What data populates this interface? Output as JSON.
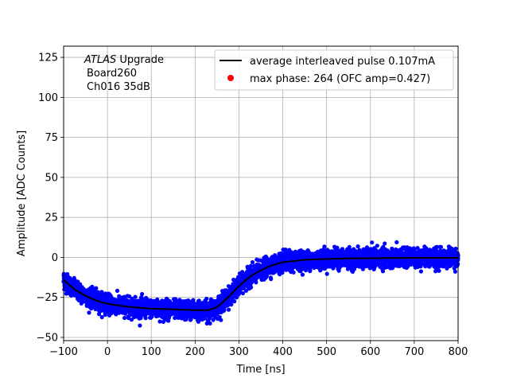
{
  "chart_data": {
    "type": "scatter",
    "xlabel": "Time [ns]",
    "ylabel": "Amplitude [ADC Counts]",
    "xlim": [
      -100,
      800
    ],
    "ylim": [
      -52,
      132
    ],
    "xticks": [
      -100,
      0,
      100,
      200,
      300,
      400,
      500,
      600,
      700,
      800
    ],
    "yticks": [
      -50,
      -25,
      0,
      25,
      50,
      75,
      100,
      125
    ],
    "xtick_labels": [
      "−100",
      "0",
      "100",
      "200",
      "300",
      "400",
      "500",
      "600",
      "700",
      "800"
    ],
    "ytick_labels": [
      "−50",
      "−25",
      "0",
      "25",
      "50",
      "75",
      "100",
      "125"
    ],
    "grid": true,
    "annotation": {
      "experiment": "ATLAS",
      "suffix": " Upgrade",
      "line2": "Board260",
      "line3": "Ch016 35dB"
    },
    "legend": {
      "placement": "top-right",
      "line_label": "average interleaved pulse 0.107mA",
      "point_label": "max phase: 264 (OFC amp=0.427)"
    },
    "series": [
      {
        "name": "average interleaved pulse 0.107mA",
        "kind": "line",
        "color": "#000000",
        "x": [
          -100,
          -75,
          -50,
          -25,
          0,
          25,
          50,
          100,
          150,
          200,
          230,
          250,
          275,
          300,
          325,
          350,
          375,
          400,
          450,
          500,
          550,
          600,
          700,
          800
        ],
        "y": [
          -14,
          -20,
          -24,
          -27,
          -29,
          -30,
          -31,
          -32,
          -32.5,
          -33,
          -33,
          -31,
          -25,
          -18,
          -12,
          -8,
          -5,
          -3,
          -1.5,
          -1,
          -0.7,
          -0.5,
          -0.3,
          -0.3
        ]
      },
      {
        "name": "samples",
        "kind": "scatter",
        "color": "#0000ff",
        "spread": 5,
        "note": "dense blue sample points scattered around the average pulse"
      },
      {
        "name": "max phase: 264 (OFC amp=0.427)",
        "kind": "marker",
        "color": "#ff0000",
        "x": [],
        "y": []
      }
    ]
  }
}
